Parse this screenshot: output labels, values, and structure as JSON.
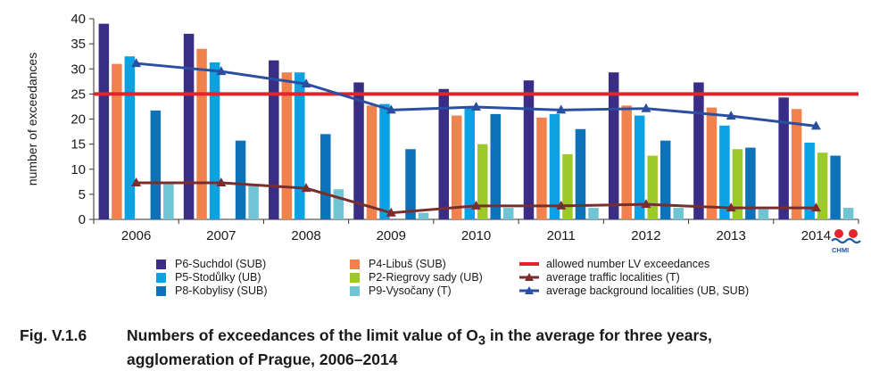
{
  "chart_data": {
    "type": "bar",
    "ylabel": "number of exceedances",
    "xlabel": "",
    "ylim": [
      0,
      40
    ],
    "yticks": [
      0,
      5,
      10,
      15,
      20,
      25,
      30,
      35,
      40
    ],
    "categories": [
      "2006",
      "2007",
      "2008",
      "2009",
      "2010",
      "2011",
      "2012",
      "2013",
      "2014"
    ],
    "series": [
      {
        "name": "P6-Suchdol (SUB)",
        "color": "#3a2d86",
        "values": [
          39,
          37,
          31.7,
          27.3,
          26,
          27.7,
          29.3,
          27.3,
          24.3
        ]
      },
      {
        "name": "P4-Libuš (SUB)",
        "color": "#f0834d",
        "values": [
          31,
          34,
          29.3,
          22.7,
          20.7,
          20.3,
          22.7,
          22.3,
          22
        ]
      },
      {
        "name": "P5-Stodůlky (UB)",
        "color": "#0ba1e2",
        "values": [
          32.5,
          31.3,
          29.3,
          23,
          22.3,
          21,
          20.7,
          18.7,
          15.3
        ]
      },
      {
        "name": "P2-Riegrovy sady (UB)",
        "color": "#9ec92b",
        "values": [
          null,
          null,
          null,
          null,
          15,
          13,
          12.7,
          14,
          13.3
        ]
      },
      {
        "name": "P8-Kobylisy (SUB)",
        "color": "#0d72b8",
        "values": [
          21.7,
          15.7,
          17,
          14,
          21,
          18,
          15.7,
          14.3,
          12.7
        ]
      },
      {
        "name": "P9-Vysočany (T)",
        "color": "#70c4d3",
        "values": [
          7,
          6.7,
          6,
          1.3,
          2.3,
          2.3,
          2.3,
          2,
          2.3
        ]
      }
    ],
    "lines": [
      {
        "name": "allowed number LV exceedances",
        "color": "#e3242b",
        "values": [
          25,
          25,
          25,
          25,
          25,
          25,
          25,
          25,
          25
        ]
      },
      {
        "name": "average traffic localities (T)",
        "color": "#7b2d2d",
        "values": [
          7.3,
          7.3,
          6.2,
          1.3,
          2.7,
          2.7,
          3,
          2.3,
          2.3
        ]
      },
      {
        "name": "average background localities (UB, SUB)",
        "color": "#2b4fa0",
        "values": [
          31.1,
          29.5,
          27,
          21.8,
          22.4,
          21.8,
          22.1,
          20.6,
          18.6
        ]
      }
    ]
  },
  "legend": {
    "bars": [
      {
        "label": "P6-Suchdol (SUB)",
        "color": "#3a2d86"
      },
      {
        "label": "P5-Stodůlky (UB)",
        "color": "#0ba1e2"
      },
      {
        "label": "P8-Kobylisy (SUB)",
        "color": "#0d72b8"
      },
      {
        "label": "P4-Libuš (SUB)",
        "color": "#f0834d"
      },
      {
        "label": "P2-Riegrovy sady (UB)",
        "color": "#9ec92b"
      },
      {
        "label": "P9-Vysočany (T)",
        "color": "#70c4d3"
      }
    ],
    "lines": [
      {
        "label": "allowed number LV exceedances",
        "color": "#e3242b",
        "marker": "none"
      },
      {
        "label": "average traffic localities (T)",
        "color": "#7b2d2d",
        "marker": "triangle"
      },
      {
        "label": "average background localities (UB, SUB)",
        "color": "#2b4fa0",
        "marker": "triangle"
      }
    ]
  },
  "caption": {
    "number": "Fig. V.1.6",
    "line1_a": "Numbers of exceedances of the limit value of O",
    "line1_sub": "3",
    "line1_b": " in the average for three years,",
    "line2": "agglomeration of Prague, 2006–2014"
  },
  "logo": {
    "text": "CHMI"
  }
}
